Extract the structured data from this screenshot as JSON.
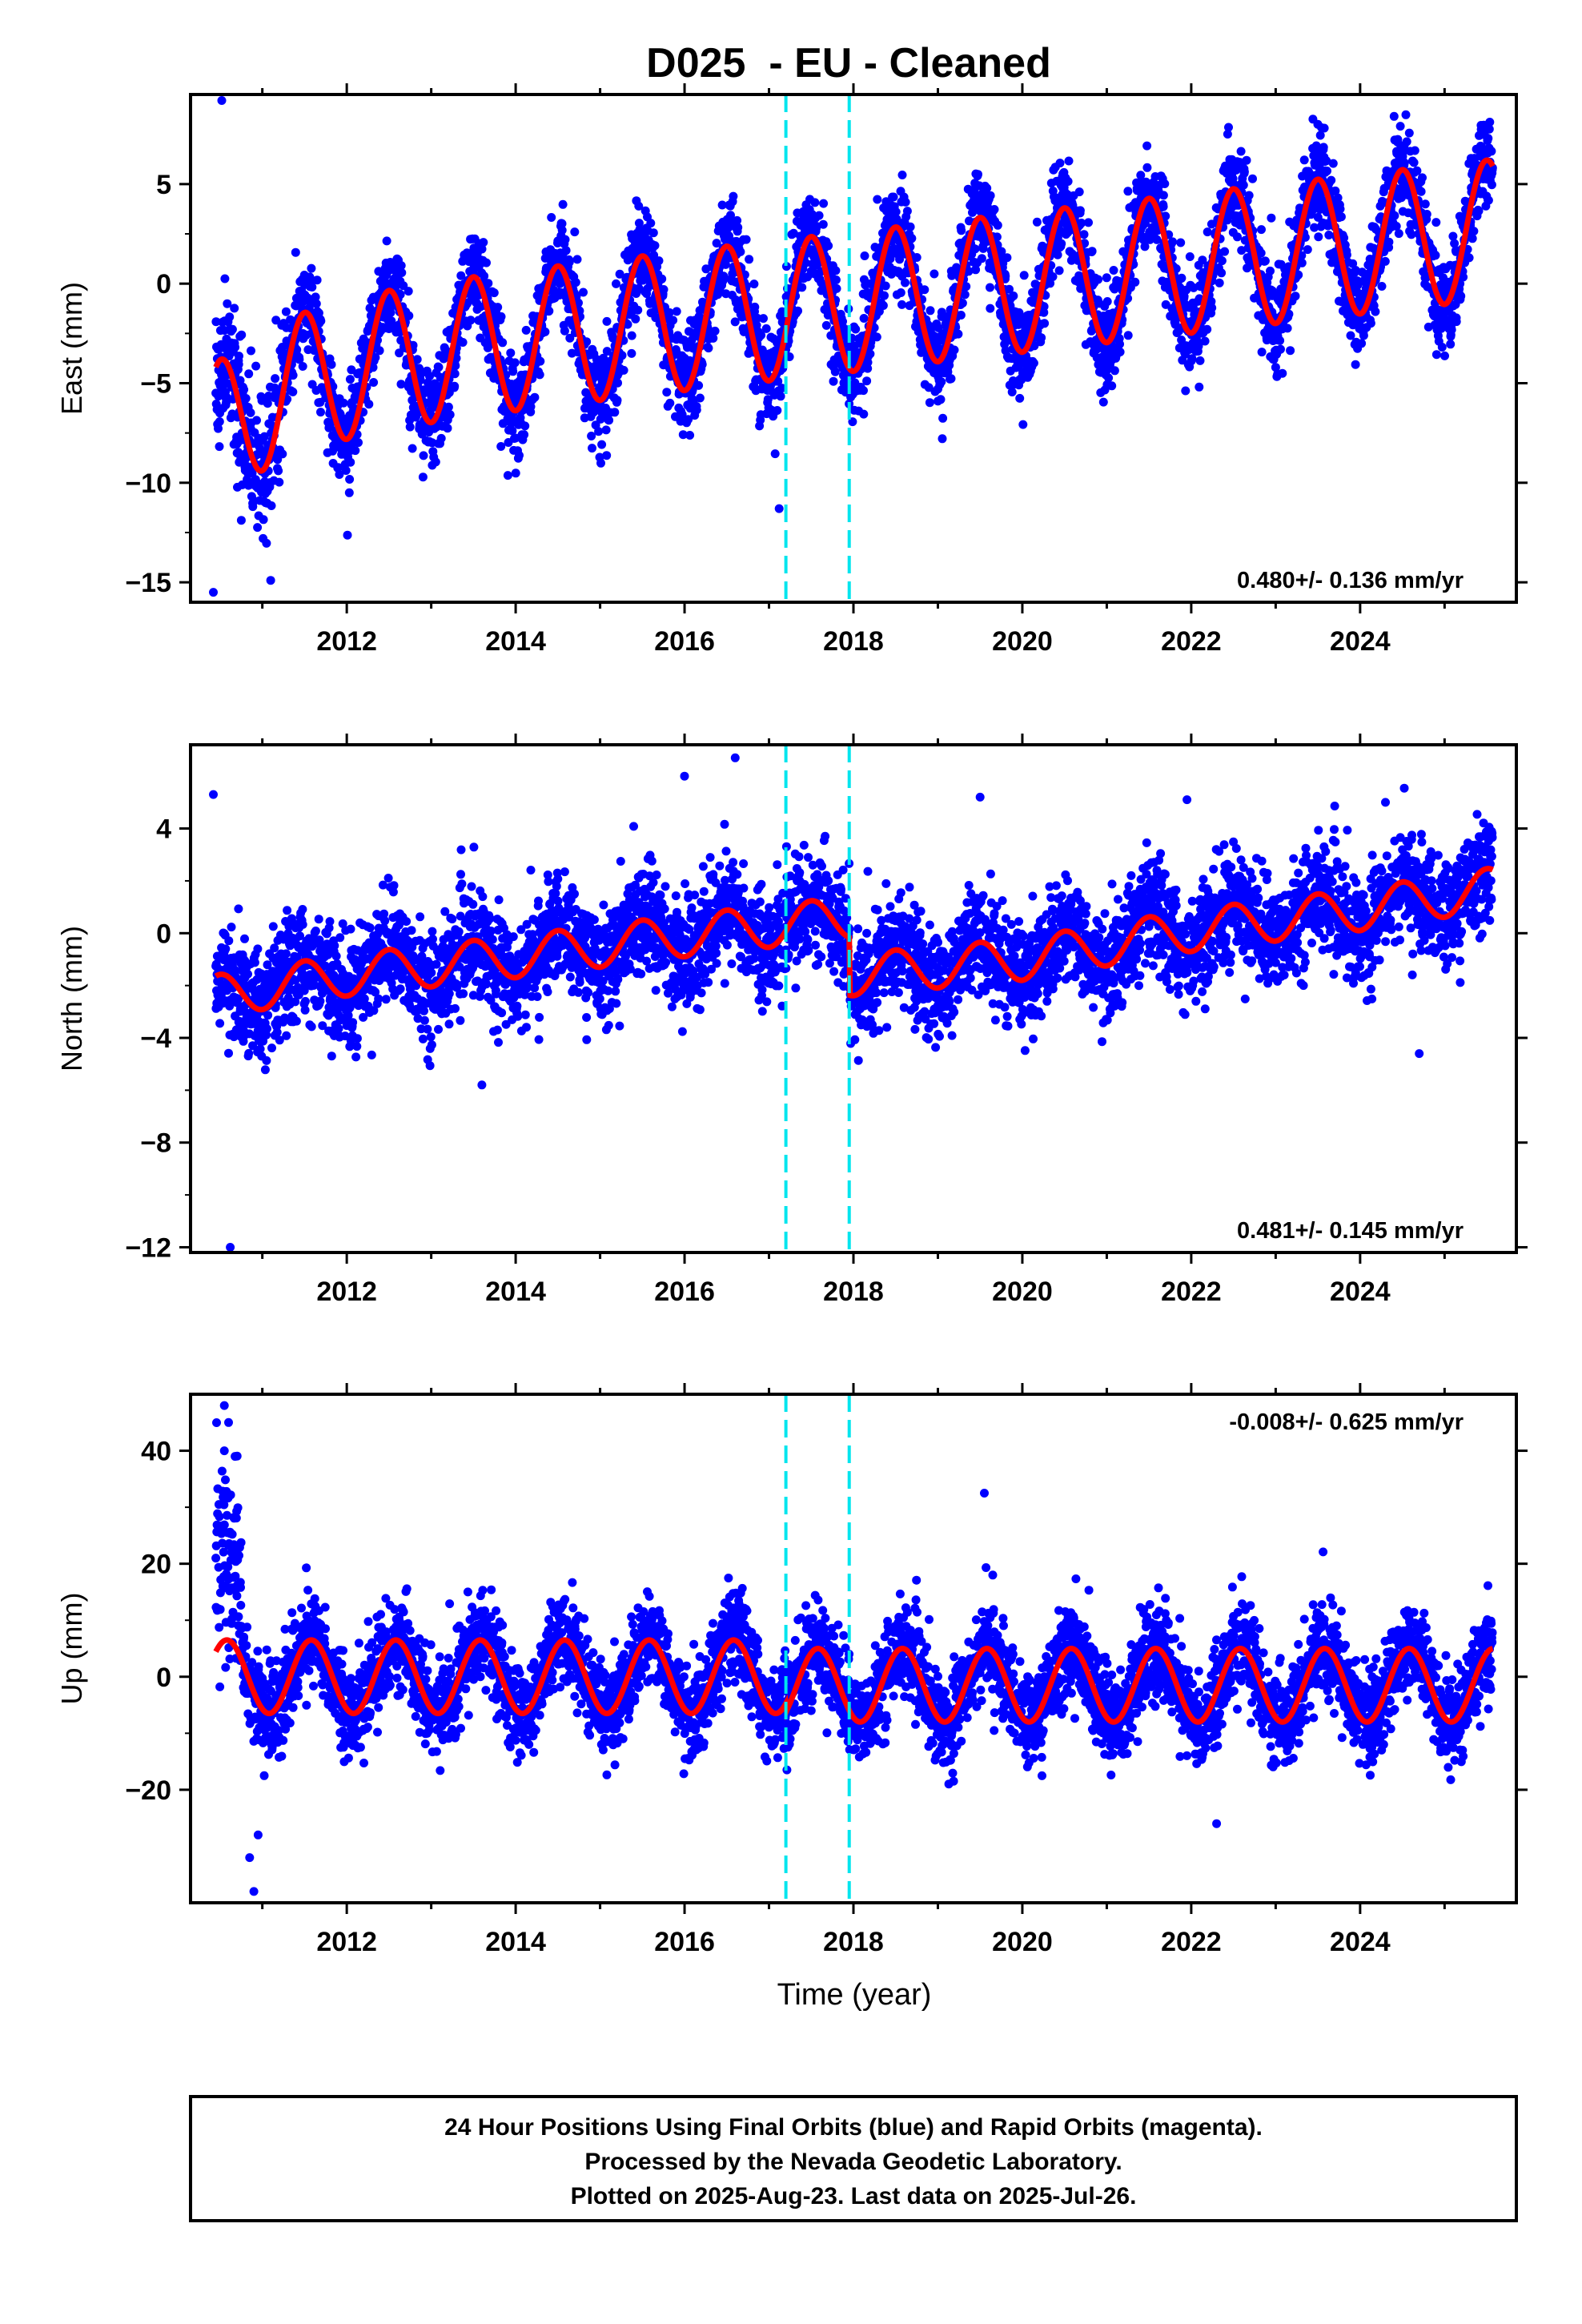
{
  "figure": {
    "title": "D025  - EU - Cleaned",
    "footer": [
      "24 Hour Positions Using Final Orbits (blue) and Rapid Orbits (magenta).",
      "Processed by the Nevada Geodetic Laboratory.",
      "Plotted on 2025-Aug-23. Last data on 2025-Jul-26."
    ],
    "colors": {
      "data": "#0000ff",
      "model": "#ff0000",
      "breaks": "#00e5ee",
      "axes": "#000000"
    }
  },
  "chart_data": [
    {
      "type": "scatter",
      "panel": "east",
      "title": "",
      "xlabel": "",
      "ylabel": "East (mm)",
      "xlim": [
        2010.15,
        2025.85
      ],
      "ylim": [
        -16,
        9.5
      ],
      "xticks": [
        "2012",
        "2014",
        "2016",
        "2018",
        "2020",
        "2022",
        "2024"
      ],
      "yticks": [
        "5",
        "0",
        "−5",
        "−10",
        "−15"
      ],
      "ytick_values": [
        5,
        0,
        -5,
        -10,
        -15
      ],
      "rate_label": "0.480+/- 0.136 mm/yr",
      "rate_position": "bottom-right",
      "break_lines": [
        2017.2,
        2017.95
      ],
      "series": [
        {
          "name": "Final Orbits (blue)",
          "kind": "daily-positions",
          "start": 2010.45,
          "end": 2025.57
        },
        {
          "name": "model",
          "kind": "fit-line",
          "linear_at_2018": -0.9,
          "rate": 0.48,
          "annual_amplitude": 3.5,
          "annual_peak": 0.5,
          "initial_transient": {
            "offset": -5,
            "decay_years": 0.9
          }
        }
      ],
      "outliers": [
        [
          2010.52,
          9.2
        ],
        [
          2010.42,
          -15.5
        ],
        [
          2017.12,
          -11.3
        ],
        [
          2013.95,
          -6.8
        ],
        [
          2019.0,
          -5.9
        ]
      ]
    },
    {
      "type": "scatter",
      "panel": "north",
      "title": "",
      "xlabel": "",
      "ylabel": "North (mm)",
      "xlim": [
        2010.15,
        2025.85
      ],
      "ylim": [
        -12.2,
        7.2
      ],
      "xticks": [
        "2012",
        "2014",
        "2016",
        "2018",
        "2020",
        "2022",
        "2024"
      ],
      "yticks": [
        "4",
        "0",
        "−4",
        "−8",
        "−12"
      ],
      "ytick_values": [
        4,
        0,
        -4,
        -8,
        -12
      ],
      "rate_label": "0.481+/- 0.145 mm/yr",
      "rate_position": "bottom-right",
      "break_lines": [
        2017.2,
        2017.95
      ],
      "series": [
        {
          "name": "Final Orbits (blue)",
          "kind": "daily-positions",
          "start": 2010.45,
          "end": 2025.57
        },
        {
          "name": "model",
          "kind": "fit-line",
          "annual_amplitude": 0.8,
          "annual_peak": 0.5,
          "trend_points": [
            [
              2010.45,
              -2.4
            ],
            [
              2012.0,
              -1.6
            ],
            [
              2014.0,
              -0.9
            ],
            [
              2016.0,
              -0.1
            ],
            [
              2017.95,
              0.6
            ],
            [
              2017.96,
              -1.6
            ],
            [
              2020.0,
              -1.0
            ],
            [
              2022.0,
              0.1
            ],
            [
              2024.0,
              0.9
            ],
            [
              2025.57,
              1.7
            ]
          ]
        }
      ],
      "outliers": [
        [
          2010.42,
          5.3
        ],
        [
          2010.62,
          -12.0
        ],
        [
          2016.6,
          6.7
        ],
        [
          2016.0,
          6.0
        ],
        [
          2019.5,
          5.2
        ],
        [
          2021.95,
          5.1
        ],
        [
          2024.3,
          5.0
        ],
        [
          2024.7,
          -4.6
        ],
        [
          2013.6,
          -5.8
        ]
      ]
    },
    {
      "type": "scatter",
      "panel": "up",
      "title": "",
      "xlabel": "Time (year)",
      "ylabel": "Up (mm)",
      "xlim": [
        2010.15,
        2025.85
      ],
      "ylim": [
        -40,
        50
      ],
      "xticks": [
        "2012",
        "2014",
        "2016",
        "2018",
        "2020",
        "2022",
        "2024"
      ],
      "yticks": [
        "40",
        "20",
        "0",
        "−20"
      ],
      "ytick_values": [
        40,
        20,
        0,
        -20
      ],
      "rate_label": "-0.008+/- 0.625 mm/yr",
      "rate_position": "top-right",
      "break_lines": [
        2017.2,
        2017.95
      ],
      "series": [
        {
          "name": "Final Orbits (blue)",
          "kind": "daily-positions",
          "start": 2010.45,
          "end": 2025.57
        },
        {
          "name": "model",
          "kind": "fit-line",
          "annual_amplitude": 6.5,
          "annual_peak": 0.58,
          "offset_2017": -1.5
        }
      ],
      "outliers": [
        [
          2010.55,
          48
        ],
        [
          2010.6,
          45
        ],
        [
          2010.55,
          40
        ],
        [
          2010.85,
          -32
        ],
        [
          2010.9,
          -38
        ],
        [
          2010.95,
          -28
        ],
        [
          2019.55,
          32.5
        ],
        [
          2019.65,
          18
        ],
        [
          2022.3,
          -26
        ]
      ]
    }
  ]
}
